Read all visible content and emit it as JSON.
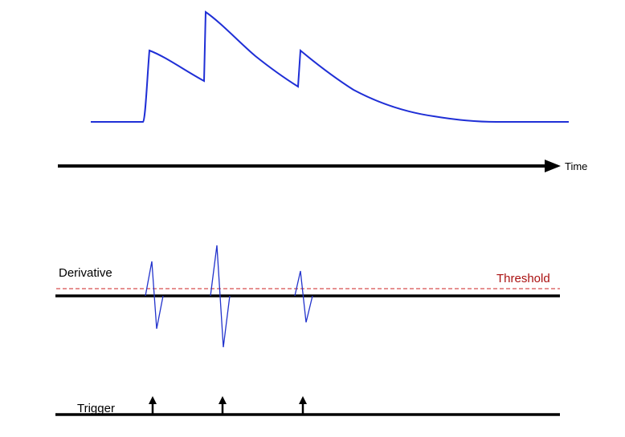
{
  "labels": {
    "time": "Time",
    "derivative": "Derivative",
    "threshold": "Threshold",
    "trigger": "Trigger"
  },
  "colors": {
    "signal": "#1f2fd6",
    "derivative": "#2233cc",
    "threshold": "#cc2222",
    "axis": "#000000",
    "threshold_label": "#aa1111"
  },
  "pulses": [
    {
      "name": "pulse-1"
    },
    {
      "name": "pulse-2"
    },
    {
      "name": "pulse-3"
    }
  ]
}
